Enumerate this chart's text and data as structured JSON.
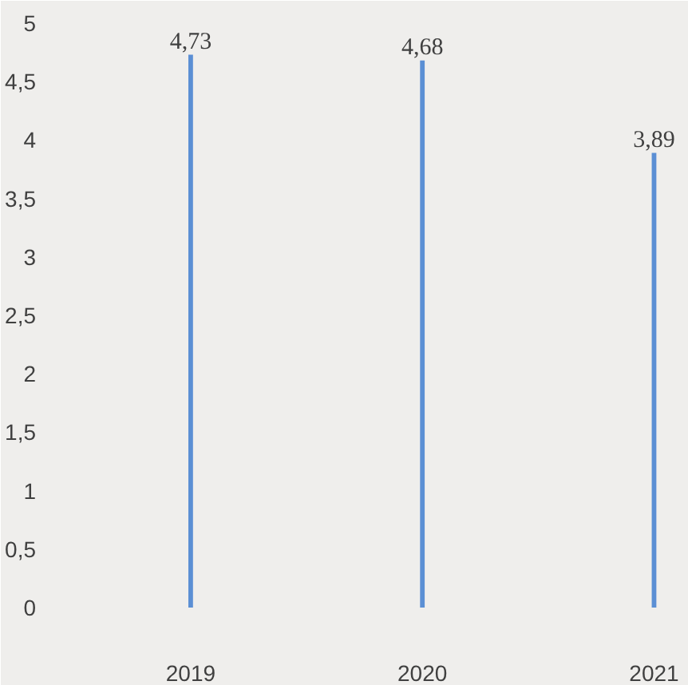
{
  "chart_data": {
    "type": "bar",
    "categories": [
      "2019",
      "2020",
      "2021"
    ],
    "values": [
      4.73,
      4.68,
      3.89
    ],
    "value_labels": [
      "4,73",
      "4,68",
      "3,89"
    ],
    "color": "#5b8fd4",
    "ylim": [
      0,
      5
    ],
    "yticks": [
      0,
      {
        "value": 0.5,
        "label": "0,5"
      },
      1,
      {
        "value": 1.5,
        "label": "1,5"
      },
      2,
      {
        "value": 2.5,
        "label": "2,5"
      },
      3,
      {
        "value": 3.5,
        "label": "3,5"
      },
      4,
      {
        "value": 4.5,
        "label": "4,5"
      },
      5
    ],
    "grid": false
  }
}
